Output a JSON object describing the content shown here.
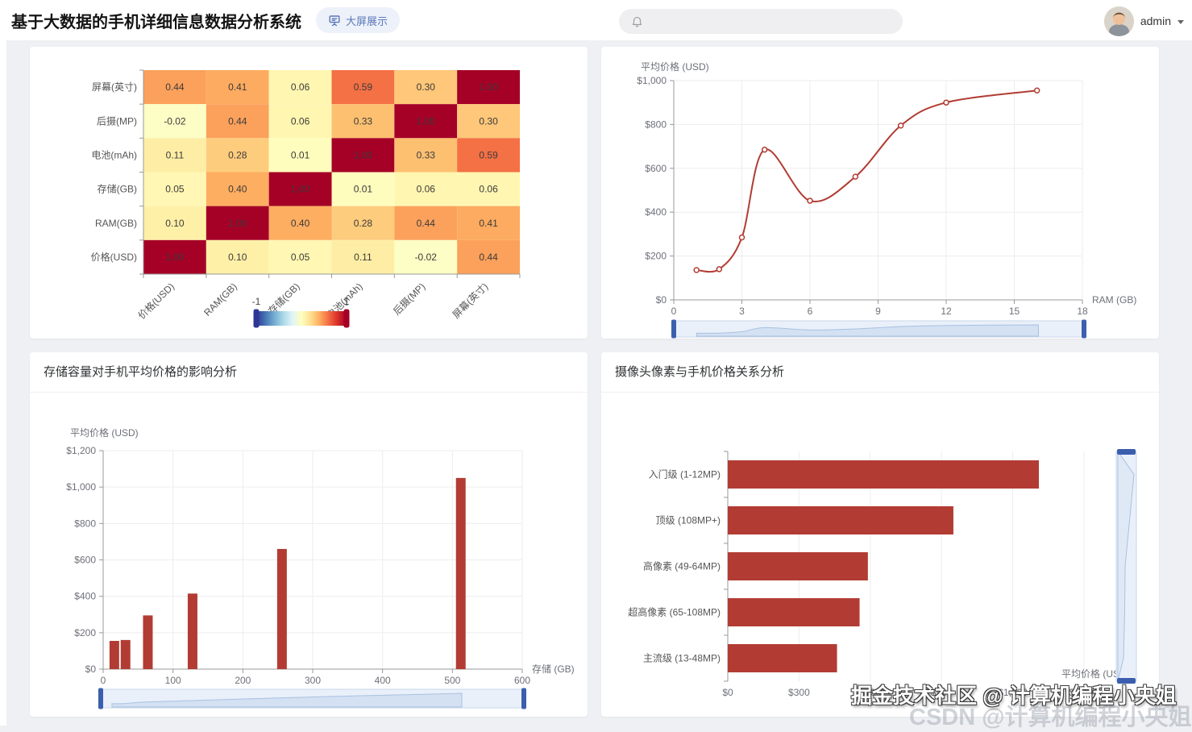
{
  "header": {
    "title": "基于大数据的手机详细信息数据分析系统",
    "screen_button": "大屏展示",
    "user": "admin"
  },
  "icons": {
    "caret_down": "caret-down-icon",
    "bell": "bell-icon",
    "screen": "presentation-screen-icon"
  },
  "colors": {
    "accent_red": "#b23c33",
    "page_bg": "#eef0f3",
    "card_bg": "#ffffff",
    "button_bg": "#edf1fa",
    "button_text": "#5b79b8",
    "axis_line": "#999999",
    "axis_text": "#6e7079",
    "grid_line": "#ededed",
    "slider_track": "#e9f0fa",
    "slider_border": "#c9d6ea",
    "slider_area": "#d3e1f3",
    "slider_line": "#a9c1e0",
    "slider_handle": "#3b5fae"
  },
  "watermark": {
    "line1": "掘金技术社区 @ 计算机编程小央姐",
    "line2": "CSDN @计算机编程小央姐"
  },
  "chart_data": [
    {
      "id": "correlation_heatmap",
      "type": "heatmap",
      "columns": [
        "价格(USD)",
        "RAM(GB)",
        "存储(GB)",
        "电池(mAh)",
        "后摄(MP)",
        "屏幕(英寸)"
      ],
      "rows": [
        "屏幕(英寸)",
        "后摄(MP)",
        "电池(mAh)",
        "存储(GB)",
        "RAM(GB)",
        "价格(USD)"
      ],
      "matrix": [
        [
          0.44,
          0.41,
          0.06,
          0.59,
          0.3,
          1.0
        ],
        [
          -0.02,
          0.44,
          0.06,
          0.33,
          1.0,
          0.3
        ],
        [
          0.11,
          0.28,
          0.01,
          1.0,
          0.33,
          0.59
        ],
        [
          0.05,
          0.4,
          1.0,
          0.01,
          0.06,
          0.06
        ],
        [
          0.1,
          1.0,
          0.4,
          0.28,
          0.44,
          0.41
        ],
        [
          1.0,
          0.1,
          0.05,
          0.11,
          -0.02,
          0.44
        ]
      ],
      "visual_map": {
        "min": -1,
        "max": 1,
        "labels": [
          "-1",
          "1"
        ],
        "stops": [
          "#313695",
          "#4575b4",
          "#74add1",
          "#abd9e9",
          "#e0f3f8",
          "#ffffbf",
          "#fee090",
          "#fdae61",
          "#f46d43",
          "#d73027",
          "#a50026"
        ]
      }
    },
    {
      "id": "ram_price_line",
      "type": "line",
      "ylabel": "平均价格 (USD)",
      "xlabel": "RAM (GB)",
      "x": [
        1,
        2,
        3,
        4,
        6,
        8,
        10,
        12,
        16
      ],
      "y": [
        136,
        140,
        285,
        685,
        452,
        562,
        795,
        900,
        955
      ],
      "xlim": [
        0,
        18
      ],
      "xticks": [
        0,
        3,
        6,
        9,
        12,
        15,
        18
      ],
      "ylim": [
        0,
        1000
      ],
      "yticks": [
        0,
        200,
        400,
        600,
        800,
        1000
      ],
      "y_tick_format": "usd",
      "grid": true,
      "data_zoom": "horizontal"
    },
    {
      "id": "storage_price_bar",
      "type": "bar",
      "title": "存储容量对手机平均价格的影响分析",
      "ylabel": "平均价格 (USD)",
      "xlabel": "存储 (GB)",
      "x": [
        16,
        32,
        64,
        128,
        256,
        512
      ],
      "values": [
        155,
        160,
        295,
        415,
        660,
        1050
      ],
      "xlim": [
        0,
        600
      ],
      "xticks": [
        0,
        100,
        200,
        300,
        400,
        500,
        600
      ],
      "ylim": [
        0,
        1200
      ],
      "yticks": [
        0,
        200,
        400,
        600,
        800,
        1000,
        1200
      ],
      "y_tick_format": "usd",
      "grid": true,
      "data_zoom": "horizontal"
    },
    {
      "id": "camera_price_hbar",
      "type": "bar",
      "orientation": "horizontal",
      "title": "摄像头像素与手机价格关系分析",
      "xlabel": "平均价格 (USD)",
      "categories": [
        "入门级 (1-12MP)",
        "顶级 (108MP+)",
        "高像素 (49-64MP)",
        "超高像素 (65-108MP)",
        "主流级 (13-48MP)"
      ],
      "values": [
        1310,
        950,
        590,
        555,
        460
      ],
      "xlim": [
        0,
        1500
      ],
      "xticks": [
        0,
        300,
        600,
        900,
        1200,
        1500
      ],
      "x_tick_format": "usd",
      "grid": true,
      "data_zoom": "vertical"
    }
  ]
}
